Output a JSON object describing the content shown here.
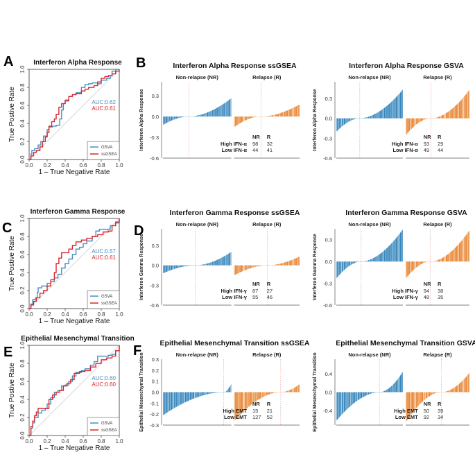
{
  "panel_letters": [
    "A",
    "B",
    "C",
    "D",
    "E",
    "F"
  ],
  "colors": {
    "gsva": "#4a8cc0",
    "ssgsea": "#d8262b",
    "nr_bar": "#1f77b4",
    "nr_bar_light": "#8ec0dd",
    "r_bar": "#e8822f",
    "r_bar_light": "#f3c290",
    "divider": "#e8a0a0",
    "diag": "#d8d8d8"
  },
  "chart_data": [
    {
      "id": "A",
      "type": "line",
      "title": "Interferon Alpha Response",
      "xlabel": "1 – True Negative Rate",
      "ylabel": "True Postive Rate",
      "xlim": [
        0,
        1
      ],
      "ylim": [
        0,
        1
      ],
      "xticks": [
        "0.0",
        "0.2",
        "0.4",
        "0.6",
        "0.8",
        "1.0"
      ],
      "yticks": [
        "0.0",
        "0.2",
        "0.4",
        "0.6",
        "0.8",
        "1.0"
      ],
      "legend": [
        "GSVA",
        "ssGSEA"
      ],
      "legend_position": "bottom-right",
      "auc_labels": [
        "AUC:0.62",
        "AUC:0.61"
      ],
      "series": [
        {
          "name": "GSVA",
          "x": [
            0,
            0.02,
            0.03,
            0.06,
            0.1,
            0.13,
            0.16,
            0.2,
            0.22,
            0.26,
            0.3,
            0.34,
            0.36,
            0.38,
            0.4,
            0.44,
            0.48,
            0.52,
            0.58,
            0.62,
            0.66,
            0.7,
            0.76,
            0.8,
            0.86,
            0.9,
            0.92,
            0.96,
            1.0
          ],
          "y": [
            0,
            0.06,
            0.1,
            0.12,
            0.16,
            0.2,
            0.26,
            0.33,
            0.36,
            0.37,
            0.38,
            0.45,
            0.55,
            0.62,
            0.66,
            0.7,
            0.72,
            0.74,
            0.8,
            0.83,
            0.84,
            0.85,
            0.84,
            0.88,
            0.9,
            0.93,
            0.98,
            1.0,
            1.0
          ]
        },
        {
          "name": "ssGSEA",
          "x": [
            0,
            0.02,
            0.05,
            0.08,
            0.12,
            0.15,
            0.18,
            0.2,
            0.22,
            0.25,
            0.28,
            0.3,
            0.33,
            0.36,
            0.4,
            0.44,
            0.48,
            0.52,
            0.58,
            0.62,
            0.66,
            0.72,
            0.76,
            0.8,
            0.84,
            0.88,
            0.92,
            0.96,
            1.0
          ],
          "y": [
            0,
            0.04,
            0.08,
            0.1,
            0.14,
            0.2,
            0.25,
            0.3,
            0.37,
            0.42,
            0.45,
            0.5,
            0.58,
            0.62,
            0.65,
            0.7,
            0.72,
            0.73,
            0.76,
            0.78,
            0.8,
            0.82,
            0.86,
            0.9,
            0.92,
            0.93,
            0.95,
            0.98,
            1.0
          ]
        }
      ]
    },
    {
      "id": "B1",
      "type": "bar",
      "title": "Interferon Alpha Response ssGSEA",
      "ylabel": "Interferon Alpha Response",
      "group_labels": [
        "Non-relapse (NR)",
        "Relapse (R)"
      ],
      "ylim": [
        -0.6,
        0.5
      ],
      "yticks": [
        "0.3",
        "0.0",
        "-0.3",
        "-0.6"
      ],
      "ytick_values": [
        0.3,
        0.0,
        -0.3,
        -0.6
      ],
      "nr": {
        "n": 142,
        "min": -0.12,
        "max": 0.26,
        "neg_fraction": 0.38
      },
      "r": {
        "n": 73,
        "min": -0.15,
        "max": 0.17,
        "neg_fraction": 0.41
      },
      "table": {
        "header": [
          "NR",
          "R"
        ],
        "rows": [
          {
            "label": "High IFN-α",
            "nr": "98",
            "r": "32"
          },
          {
            "label": "Low IFN-α",
            "nr": "44",
            "r": "41"
          }
        ]
      }
    },
    {
      "id": "B2",
      "type": "bar",
      "title": "Interferon Alpha Response GSVA",
      "ylabel": "Interferon Alpha Response",
      "group_labels": [
        "Non-relapse (NR)",
        "Relapse (R)"
      ],
      "ylim": [
        -0.6,
        0.55
      ],
      "yticks": [
        "0.3",
        "0.0",
        "-0.3",
        "-0.6"
      ],
      "ytick_values": [
        0.3,
        0.0,
        -0.3,
        -0.6
      ],
      "nr": {
        "n": 142,
        "min": -0.2,
        "max": 0.43,
        "neg_fraction": 0.35
      },
      "r": {
        "n": 73,
        "min": -0.25,
        "max": 0.42,
        "neg_fraction": 0.4
      },
      "table": {
        "header": [
          "NR",
          "R"
        ],
        "rows": [
          {
            "label": "High IFN-α",
            "nr": "93",
            "r": "29"
          },
          {
            "label": "Low IFN-α",
            "nr": "49",
            "r": "44"
          }
        ]
      }
    },
    {
      "id": "C",
      "type": "line",
      "title": "Interferon Gamma Response",
      "xlabel": "1 – True Negative Rate",
      "ylabel": "True Postive Rate",
      "xlim": [
        0,
        1
      ],
      "ylim": [
        0,
        1
      ],
      "xticks": [
        "0.0",
        "0.2",
        "0.4",
        "0.6",
        "0.8",
        "1.0"
      ],
      "yticks": [
        "0.0",
        "0.2",
        "0.4",
        "0.6",
        "0.8",
        "1.0"
      ],
      "legend": [
        "GSVA",
        "ssGSEA"
      ],
      "legend_position": "bottom-right",
      "auc_labels": [
        "AUC:0.57",
        "AUC:0.61"
      ],
      "series": [
        {
          "name": "GSVA",
          "x": [
            0,
            0.02,
            0.04,
            0.07,
            0.09,
            0.1,
            0.14,
            0.2,
            0.24,
            0.28,
            0.32,
            0.36,
            0.4,
            0.44,
            0.48,
            0.52,
            0.56,
            0.6,
            0.64,
            0.7,
            0.74,
            0.78,
            0.84,
            0.9,
            0.96,
            1.0
          ],
          "y": [
            0,
            0.05,
            0.1,
            0.12,
            0.18,
            0.23,
            0.25,
            0.28,
            0.3,
            0.34,
            0.38,
            0.45,
            0.5,
            0.55,
            0.6,
            0.66,
            0.68,
            0.72,
            0.75,
            0.8,
            0.86,
            0.88,
            0.88,
            0.92,
            0.95,
            1.0
          ]
        },
        {
          "name": "ssGSEA",
          "x": [
            0,
            0.02,
            0.05,
            0.08,
            0.12,
            0.16,
            0.2,
            0.24,
            0.28,
            0.3,
            0.33,
            0.36,
            0.4,
            0.44,
            0.48,
            0.52,
            0.58,
            0.64,
            0.7,
            0.76,
            0.82,
            0.88,
            0.92,
            0.96,
            1.0
          ],
          "y": [
            0,
            0.04,
            0.08,
            0.12,
            0.17,
            0.2,
            0.25,
            0.32,
            0.4,
            0.5,
            0.56,
            0.62,
            0.62,
            0.66,
            0.7,
            0.74,
            0.76,
            0.78,
            0.8,
            0.82,
            0.85,
            0.86,
            0.92,
            0.96,
            1.0
          ]
        }
      ]
    },
    {
      "id": "D1",
      "type": "bar",
      "title": "Interferon Gamma Response ssGSEA",
      "ylabel": "Interferon Gamma Response",
      "group_labels": [
        "Non-relapse (NR)",
        "Relapse (R)"
      ],
      "ylim": [
        -0.6,
        0.55
      ],
      "yticks": [
        "0.3",
        "0.0",
        "-0.3",
        "-0.6"
      ],
      "ytick_values": [
        0.3,
        0.0,
        -0.3,
        -0.6
      ],
      "nr": {
        "n": 142,
        "min": -0.12,
        "max": 0.2,
        "neg_fraction": 0.47
      },
      "r": {
        "n": 73,
        "min": -0.15,
        "max": 0.13,
        "neg_fraction": 0.5
      },
      "table": {
        "header": [
          "NR",
          "R"
        ],
        "rows": [
          {
            "label": "High IFN-γ",
            "nr": "87",
            "r": "27"
          },
          {
            "label": "Low IFN-γ",
            "nr": "55",
            "r": "46"
          }
        ]
      }
    },
    {
      "id": "D2",
      "type": "bar",
      "title": "Interferon Gamma Response GSVA",
      "ylabel": "Interferon Gamma Response",
      "group_labels": [
        "Non-relapse (NR)",
        "Relapse (R)"
      ],
      "ylim": [
        -0.6,
        0.45
      ],
      "yticks": [
        "0.3",
        "0.0",
        "-0.3",
        "-0.6"
      ],
      "ytick_values": [
        0.3,
        0.0,
        -0.3,
        -0.6
      ],
      "nr": {
        "n": 142,
        "min": -0.23,
        "max": 0.44,
        "neg_fraction": 0.37
      },
      "r": {
        "n": 73,
        "min": -0.23,
        "max": 0.42,
        "neg_fraction": 0.38
      },
      "table": {
        "header": [
          "NR",
          "R"
        ],
        "rows": [
          {
            "label": "High IFN-γ",
            "nr": "94",
            "r": "38"
          },
          {
            "label": "Low IFN-γ",
            "nr": "48",
            "r": "35"
          }
        ]
      }
    },
    {
      "id": "E",
      "type": "line",
      "title": "Epithelial Mesenchymal Transition",
      "xlabel": "1 – True Negative Rate",
      "ylabel": "True Postive Rate",
      "xlim": [
        0,
        1
      ],
      "ylim": [
        0,
        1
      ],
      "xticks": [
        "0.0",
        "0.2",
        "0.4",
        "0.6",
        "0.8",
        "1.0"
      ],
      "yticks": [
        "0.0",
        "0.2",
        "0.4",
        "0.6",
        "0.8",
        "1.0"
      ],
      "legend": [
        "GSVA",
        "ssGSEA"
      ],
      "legend_position": "bottom-right",
      "auc_labels": [
        "AUC:0.60",
        "AUC:0.60"
      ],
      "series": [
        {
          "name": "GSVA",
          "x": [
            0,
            0.02,
            0.04,
            0.06,
            0.1,
            0.14,
            0.18,
            0.2,
            0.24,
            0.28,
            0.32,
            0.36,
            0.4,
            0.44,
            0.48,
            0.52,
            0.58,
            0.62,
            0.68,
            0.72,
            0.76,
            0.82,
            0.88,
            0.92,
            0.96,
            1.0
          ],
          "y": [
            0,
            0.08,
            0.14,
            0.2,
            0.25,
            0.28,
            0.3,
            0.35,
            0.42,
            0.48,
            0.5,
            0.55,
            0.56,
            0.6,
            0.66,
            0.7,
            0.72,
            0.74,
            0.78,
            0.82,
            0.88,
            0.88,
            0.89,
            0.9,
            0.94,
            1.0
          ]
        },
        {
          "name": "ssGSEA",
          "x": [
            0,
            0.02,
            0.04,
            0.06,
            0.08,
            0.1,
            0.16,
            0.2,
            0.22,
            0.26,
            0.3,
            0.34,
            0.38,
            0.42,
            0.46,
            0.5,
            0.56,
            0.62,
            0.68,
            0.74,
            0.8,
            0.86,
            0.92,
            0.96,
            1.0
          ],
          "y": [
            0,
            0.1,
            0.16,
            0.22,
            0.26,
            0.3,
            0.3,
            0.3,
            0.4,
            0.45,
            0.48,
            0.5,
            0.55,
            0.58,
            0.62,
            0.69,
            0.71,
            0.72,
            0.76,
            0.8,
            0.84,
            0.86,
            0.88,
            0.94,
            1.0
          ]
        }
      ]
    },
    {
      "id": "F1",
      "type": "bar",
      "title": "Epithelial Mesenchymal Transition ssGSEA",
      "ylabel": "Epithelial Mesenchymal Transition",
      "group_labels": [
        "Non-relapse (NR)",
        "Relapse (R)"
      ],
      "ylim": [
        -0.3,
        0.3
      ],
      "yticks": [
        "0.3",
        "0.2",
        "0.1",
        "0.0",
        "-0.1",
        "-0.2",
        "-0.3"
      ],
      "ytick_values": [
        0.3,
        0.2,
        0.1,
        0.0,
        -0.1,
        -0.2,
        -0.3
      ],
      "nr": {
        "n": 142,
        "min": -0.21,
        "max": 0.07,
        "neg_fraction": 0.89
      },
      "r": {
        "n": 73,
        "min": -0.26,
        "max": 0.07,
        "neg_fraction": 0.71
      },
      "table": {
        "header": [
          "NR",
          "R"
        ],
        "rows": [
          {
            "label": "High EMT",
            "nr": "15",
            "r": "21"
          },
          {
            "label": "Low EMT",
            "nr": "127",
            "r": "52"
          }
        ]
      }
    },
    {
      "id": "F2",
      "type": "bar",
      "title": "Epithelial Mesenchymal Transition GSVA",
      "ylabel": "Epithelial Mesenchymal Transition",
      "group_labels": [
        "Non-relapse (NR)",
        "Relapse (R)"
      ],
      "ylim": [
        -0.72,
        0.72
      ],
      "yticks": [
        "0.4",
        "0.0",
        "-0.4"
      ],
      "ytick_values": [
        0.4,
        0.0,
        -0.4
      ],
      "nr": {
        "n": 142,
        "min": -0.62,
        "max": 0.44,
        "neg_fraction": 0.65
      },
      "r": {
        "n": 73,
        "min": -0.65,
        "max": 0.41,
        "neg_fraction": 0.56
      },
      "table": {
        "header": [
          "NR",
          "R"
        ],
        "rows": [
          {
            "label": "High EMT",
            "nr": "50",
            "r": "39"
          },
          {
            "label": "Low EMT",
            "nr": "92",
            "r": "34"
          }
        ]
      }
    }
  ]
}
